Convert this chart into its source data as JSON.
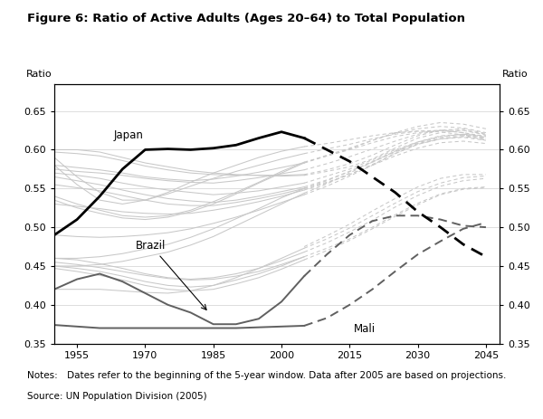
{
  "title": "Figure 6: Ratio of Active Adults (Ages 20–64) to Total Population",
  "ylabel_left": "Ratio",
  "ylabel_right": "Ratio",
  "notes": "Notes: Dates refer to the beginning of the 5-year window. Data after 2005 are based on projections.",
  "source": "Source: UN Population Division (2005)",
  "xlim": [
    1950,
    2048
  ],
  "ylim": [
    0.35,
    0.685
  ],
  "xticks": [
    1955,
    1970,
    1985,
    2000,
    2015,
    2030,
    2045
  ],
  "yticks": [
    0.35,
    0.4,
    0.45,
    0.5,
    0.55,
    0.6,
    0.65
  ],
  "japan_x": [
    1950,
    1955,
    1960,
    1965,
    1970,
    1975,
    1980,
    1985,
    1990,
    1995,
    2000,
    2005
  ],
  "japan_y": [
    0.49,
    0.51,
    0.54,
    0.575,
    0.6,
    0.601,
    0.6,
    0.602,
    0.606,
    0.615,
    0.623,
    0.615
  ],
  "japan_proj_x": [
    2005,
    2010,
    2015,
    2020,
    2025,
    2030,
    2035,
    2040,
    2045
  ],
  "japan_proj_y": [
    0.615,
    0.6,
    0.585,
    0.565,
    0.545,
    0.52,
    0.5,
    0.478,
    0.462
  ],
  "brazil_x": [
    1950,
    1955,
    1960,
    1965,
    1970,
    1975,
    1980,
    1985,
    1990,
    1995,
    2000,
    2005
  ],
  "brazil_y": [
    0.42,
    0.433,
    0.44,
    0.43,
    0.415,
    0.4,
    0.39,
    0.375,
    0.375,
    0.382,
    0.404,
    0.437
  ],
  "brazil_proj_x": [
    2005,
    2010,
    2015,
    2020,
    2025,
    2030,
    2035,
    2040,
    2045
  ],
  "brazil_proj_y": [
    0.437,
    0.465,
    0.49,
    0.508,
    0.515,
    0.515,
    0.51,
    0.502,
    0.5
  ],
  "mali_x": [
    1950,
    1955,
    1960,
    1965,
    1970,
    1975,
    1980,
    1985,
    1990,
    1995,
    2000,
    2005
  ],
  "mali_y": [
    0.374,
    0.372,
    0.37,
    0.37,
    0.37,
    0.37,
    0.37,
    0.37,
    0.37,
    0.371,
    0.372,
    0.373
  ],
  "mali_proj_x": [
    2005,
    2010,
    2015,
    2020,
    2025,
    2030,
    2035,
    2040,
    2045
  ],
  "mali_proj_y": [
    0.373,
    0.383,
    0.4,
    0.42,
    0.443,
    0.465,
    0.482,
    0.498,
    0.506
  ],
  "other_solid_lines": [
    {
      "x": [
        1950,
        1955,
        1960,
        1965,
        1970,
        1975,
        1980,
        1985,
        1990,
        1995,
        2000,
        2005
      ],
      "y": [
        0.6,
        0.6,
        0.597,
        0.59,
        0.583,
        0.578,
        0.573,
        0.57,
        0.568,
        0.567,
        0.566,
        0.567
      ]
    },
    {
      "x": [
        1950,
        1955,
        1960,
        1965,
        1970,
        1975,
        1980,
        1985,
        1990,
        1995,
        2000,
        2005
      ],
      "y": [
        0.597,
        0.595,
        0.592,
        0.586,
        0.579,
        0.574,
        0.57,
        0.568,
        0.567,
        0.567,
        0.567,
        0.568
      ]
    },
    {
      "x": [
        1950,
        1955,
        1960,
        1965,
        1970,
        1975,
        1980,
        1985,
        1990,
        1995,
        2000,
        2005
      ],
      "y": [
        0.58,
        0.577,
        0.574,
        0.57,
        0.565,
        0.562,
        0.56,
        0.562,
        0.566,
        0.571,
        0.577,
        0.583
      ]
    },
    {
      "x": [
        1950,
        1955,
        1960,
        1965,
        1970,
        1975,
        1980,
        1985,
        1990,
        1995,
        2000,
        2005
      ],
      "y": [
        0.575,
        0.572,
        0.57,
        0.567,
        0.563,
        0.56,
        0.558,
        0.557,
        0.56,
        0.564,
        0.569,
        0.574
      ]
    },
    {
      "x": [
        1950,
        1955,
        1960,
        1965,
        1970,
        1975,
        1980,
        1985,
        1990,
        1995,
        2000,
        2005
      ],
      "y": [
        0.57,
        0.567,
        0.563,
        0.557,
        0.552,
        0.548,
        0.545,
        0.542,
        0.544,
        0.547,
        0.552,
        0.557
      ]
    },
    {
      "x": [
        1950,
        1955,
        1960,
        1965,
        1970,
        1975,
        1980,
        1985,
        1990,
        1995,
        2000,
        2005
      ],
      "y": [
        0.565,
        0.56,
        0.555,
        0.548,
        0.542,
        0.537,
        0.534,
        0.532,
        0.535,
        0.54,
        0.546,
        0.552
      ]
    },
    {
      "x": [
        1950,
        1955,
        1960,
        1965,
        1970,
        1975,
        1980,
        1985,
        1990,
        1995,
        2000,
        2005
      ],
      "y": [
        0.555,
        0.551,
        0.547,
        0.541,
        0.535,
        0.53,
        0.528,
        0.528,
        0.532,
        0.537,
        0.543,
        0.55
      ]
    },
    {
      "x": [
        1950,
        1955,
        1960,
        1965,
        1970,
        1975,
        1980,
        1985,
        1990,
        1995,
        2000,
        2005
      ],
      "y": [
        0.53,
        0.527,
        0.524,
        0.52,
        0.518,
        0.517,
        0.518,
        0.522,
        0.527,
        0.533,
        0.54,
        0.548
      ]
    },
    {
      "x": [
        1950,
        1955,
        1960,
        1965,
        1970,
        1975,
        1980,
        1985,
        1990,
        1995,
        2000,
        2005
      ],
      "y": [
        0.59,
        0.565,
        0.545,
        0.535,
        0.535,
        0.543,
        0.553,
        0.563,
        0.572,
        0.58,
        0.588,
        0.595
      ]
    },
    {
      "x": [
        1950,
        1955,
        1960,
        1965,
        1970,
        1975,
        1980,
        1985,
        1990,
        1995,
        2000,
        2005
      ],
      "y": [
        0.58,
        0.555,
        0.535,
        0.53,
        0.535,
        0.545,
        0.558,
        0.57,
        0.58,
        0.59,
        0.598,
        0.604
      ]
    },
    {
      "x": [
        1950,
        1955,
        1960,
        1965,
        1970,
        1975,
        1980,
        1985,
        1990,
        1995,
        2000,
        2005
      ],
      "y": [
        0.54,
        0.53,
        0.522,
        0.515,
        0.513,
        0.515,
        0.522,
        0.533,
        0.545,
        0.558,
        0.572,
        0.584
      ]
    },
    {
      "x": [
        1950,
        1955,
        1960,
        1965,
        1970,
        1975,
        1980,
        1985,
        1990,
        1995,
        2000,
        2005
      ],
      "y": [
        0.535,
        0.525,
        0.518,
        0.512,
        0.51,
        0.513,
        0.52,
        0.53,
        0.543,
        0.557,
        0.57,
        0.583
      ]
    },
    {
      "x": [
        1950,
        1955,
        1960,
        1965,
        1970,
        1975,
        1980,
        1985,
        1990,
        1995,
        2000,
        2005
      ],
      "y": [
        0.49,
        0.488,
        0.487,
        0.488,
        0.49,
        0.493,
        0.498,
        0.505,
        0.513,
        0.522,
        0.532,
        0.542
      ]
    },
    {
      "x": [
        1950,
        1955,
        1960,
        1965,
        1970,
        1975,
        1980,
        1985,
        1990,
        1995,
        2000,
        2005
      ],
      "y": [
        0.46,
        0.46,
        0.462,
        0.466,
        0.472,
        0.478,
        0.487,
        0.498,
        0.511,
        0.524,
        0.538,
        0.55
      ]
    },
    {
      "x": [
        1950,
        1955,
        1960,
        1965,
        1970,
        1975,
        1980,
        1985,
        1990,
        1995,
        2000,
        2005
      ],
      "y": [
        0.455,
        0.452,
        0.448,
        0.443,
        0.438,
        0.434,
        0.432,
        0.433,
        0.437,
        0.443,
        0.452,
        0.462
      ]
    },
    {
      "x": [
        1950,
        1955,
        1960,
        1965,
        1970,
        1975,
        1980,
        1985,
        1990,
        1995,
        2000,
        2005
      ],
      "y": [
        0.45,
        0.45,
        0.452,
        0.456,
        0.462,
        0.468,
        0.477,
        0.488,
        0.502,
        0.516,
        0.53,
        0.544
      ]
    },
    {
      "x": [
        1950,
        1955,
        1960,
        1965,
        1970,
        1975,
        1980,
        1985,
        1990,
        1995,
        2000,
        2005
      ],
      "y": [
        0.46,
        0.458,
        0.453,
        0.447,
        0.44,
        0.435,
        0.433,
        0.435,
        0.44,
        0.447,
        0.457,
        0.468
      ]
    },
    {
      "x": [
        1950,
        1955,
        1960,
        1965,
        1970,
        1975,
        1980,
        1985,
        1990,
        1995,
        2000,
        2005
      ],
      "y": [
        0.45,
        0.447,
        0.443,
        0.437,
        0.43,
        0.425,
        0.423,
        0.425,
        0.432,
        0.44,
        0.45,
        0.462
      ]
    },
    {
      "x": [
        1950,
        1955,
        1960,
        1965,
        1970,
        1975,
        1980,
        1985,
        1990,
        1995,
        2000,
        2005
      ],
      "y": [
        0.447,
        0.443,
        0.438,
        0.432,
        0.425,
        0.42,
        0.418,
        0.42,
        0.427,
        0.435,
        0.446,
        0.458
      ]
    },
    {
      "x": [
        1950,
        1955,
        1960,
        1965,
        1970,
        1975,
        1980,
        1985,
        1990,
        1995,
        2000,
        2005
      ],
      "y": [
        0.42,
        0.42,
        0.42,
        0.418,
        0.416,
        0.415,
        0.418,
        0.425,
        0.435,
        0.447,
        0.46,
        0.473
      ]
    }
  ],
  "other_dashed_lines": [
    {
      "x": [
        2005,
        2010,
        2015,
        2020,
        2025,
        2030,
        2035,
        2040,
        2045
      ],
      "y": [
        0.567,
        0.572,
        0.578,
        0.588,
        0.602,
        0.615,
        0.622,
        0.625,
        0.62
      ]
    },
    {
      "x": [
        2005,
        2010,
        2015,
        2020,
        2025,
        2030,
        2035,
        2040,
        2045
      ],
      "y": [
        0.568,
        0.574,
        0.582,
        0.593,
        0.606,
        0.618,
        0.625,
        0.627,
        0.621
      ]
    },
    {
      "x": [
        2005,
        2010,
        2015,
        2020,
        2025,
        2030,
        2035,
        2040,
        2045
      ],
      "y": [
        0.583,
        0.592,
        0.601,
        0.612,
        0.622,
        0.63,
        0.635,
        0.633,
        0.627
      ]
    },
    {
      "x": [
        2005,
        2010,
        2015,
        2020,
        2025,
        2030,
        2035,
        2040,
        2045
      ],
      "y": [
        0.574,
        0.582,
        0.591,
        0.601,
        0.611,
        0.62,
        0.625,
        0.625,
        0.619
      ]
    },
    {
      "x": [
        2005,
        2010,
        2015,
        2020,
        2025,
        2030,
        2035,
        2040,
        2045
      ],
      "y": [
        0.557,
        0.566,
        0.575,
        0.587,
        0.6,
        0.61,
        0.618,
        0.62,
        0.616
      ]
    },
    {
      "x": [
        2005,
        2010,
        2015,
        2020,
        2025,
        2030,
        2035,
        2040,
        2045
      ],
      "y": [
        0.552,
        0.561,
        0.572,
        0.584,
        0.597,
        0.608,
        0.614,
        0.617,
        0.614
      ]
    },
    {
      "x": [
        2005,
        2010,
        2015,
        2020,
        2025,
        2030,
        2035,
        2040,
        2045
      ],
      "y": [
        0.55,
        0.558,
        0.568,
        0.58,
        0.592,
        0.602,
        0.609,
        0.611,
        0.608
      ]
    },
    {
      "x": [
        2005,
        2010,
        2015,
        2020,
        2025,
        2030,
        2035,
        2040,
        2045
      ],
      "y": [
        0.548,
        0.557,
        0.568,
        0.581,
        0.595,
        0.607,
        0.614,
        0.617,
        0.614
      ]
    },
    {
      "x": [
        2005,
        2010,
        2015,
        2020,
        2025,
        2030,
        2035,
        2040,
        2045
      ],
      "y": [
        0.595,
        0.601,
        0.607,
        0.614,
        0.62,
        0.624,
        0.625,
        0.622,
        0.615
      ]
    },
    {
      "x": [
        2005,
        2010,
        2015,
        2020,
        2025,
        2030,
        2035,
        2040,
        2045
      ],
      "y": [
        0.604,
        0.608,
        0.613,
        0.618,
        0.622,
        0.624,
        0.623,
        0.619,
        0.612
      ]
    },
    {
      "x": [
        2005,
        2010,
        2015,
        2020,
        2025,
        2030,
        2035,
        2040,
        2045
      ],
      "y": [
        0.584,
        0.592,
        0.6,
        0.609,
        0.617,
        0.622,
        0.625,
        0.622,
        0.617
      ]
    },
    {
      "x": [
        2005,
        2010,
        2015,
        2020,
        2025,
        2030,
        2035,
        2040,
        2045
      ],
      "y": [
        0.583,
        0.593,
        0.602,
        0.612,
        0.621,
        0.627,
        0.63,
        0.628,
        0.622
      ]
    },
    {
      "x": [
        2005,
        2010,
        2015,
        2020,
        2025,
        2030,
        2035,
        2040,
        2045
      ],
      "y": [
        0.544,
        0.556,
        0.57,
        0.584,
        0.598,
        0.61,
        0.617,
        0.62,
        0.618
      ]
    },
    {
      "x": [
        2005,
        2010,
        2015,
        2020,
        2025,
        2030,
        2035,
        2040,
        2045
      ],
      "y": [
        0.55,
        0.56,
        0.572,
        0.585,
        0.598,
        0.609,
        0.616,
        0.619,
        0.616
      ]
    },
    {
      "x": [
        2005,
        2010,
        2015,
        2020,
        2025,
        2030,
        2035,
        2040,
        2045
      ],
      "y": [
        0.542,
        0.553,
        0.566,
        0.58,
        0.595,
        0.607,
        0.614,
        0.616,
        0.612
      ]
    },
    {
      "x": [
        2005,
        2010,
        2015,
        2020,
        2025,
        2030,
        2035,
        2040,
        2045
      ],
      "y": [
        0.475,
        0.489,
        0.504,
        0.521,
        0.537,
        0.552,
        0.563,
        0.568,
        0.568
      ]
    },
    {
      "x": [
        2005,
        2010,
        2015,
        2020,
        2025,
        2030,
        2035,
        2040,
        2045
      ],
      "y": [
        0.473,
        0.485,
        0.499,
        0.515,
        0.531,
        0.546,
        0.557,
        0.564,
        0.566
      ]
    },
    {
      "x": [
        2005,
        2010,
        2015,
        2020,
        2025,
        2030,
        2035,
        2040,
        2045
      ],
      "y": [
        0.468,
        0.48,
        0.494,
        0.509,
        0.526,
        0.541,
        0.553,
        0.56,
        0.563
      ]
    },
    {
      "x": [
        2005,
        2010,
        2015,
        2020,
        2025,
        2030,
        2035,
        2040,
        2045
      ],
      "y": [
        0.462,
        0.473,
        0.485,
        0.5,
        0.516,
        0.531,
        0.543,
        0.55,
        0.552
      ]
    },
    {
      "x": [
        2005,
        2010,
        2015,
        2020,
        2025,
        2030,
        2035,
        2040,
        2045
      ],
      "y": [
        0.458,
        0.47,
        0.483,
        0.498,
        0.514,
        0.529,
        0.542,
        0.549,
        0.551
      ]
    }
  ],
  "light_gray": "#c8c8c8",
  "dark_gray": "#606060",
  "black": "#000000"
}
